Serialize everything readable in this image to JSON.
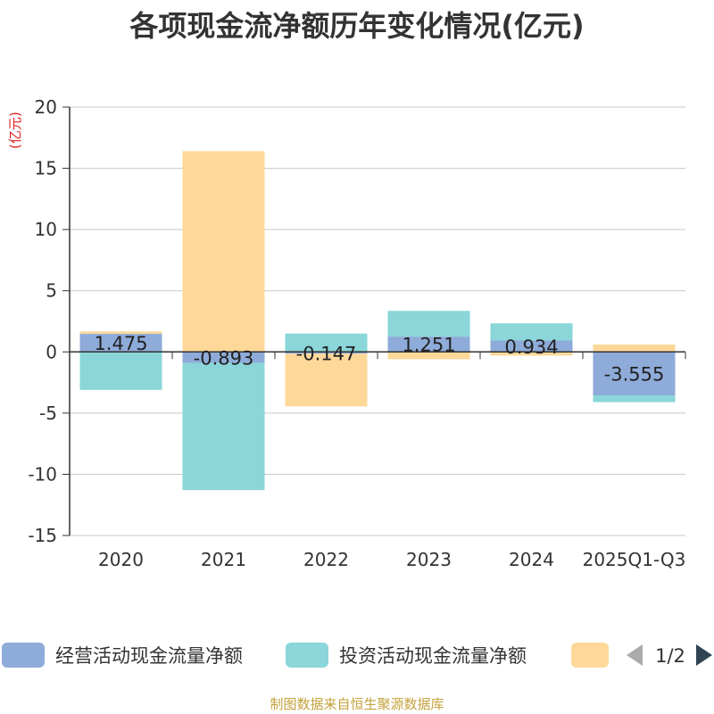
{
  "chart_data": {
    "type": "bar",
    "stacked": true,
    "title": "各项现金流净额历年变化情况(亿元)",
    "ylabel": "(亿元)",
    "xlabel": "",
    "ylim": [
      -15,
      20
    ],
    "yticks": [
      20,
      15,
      10,
      5,
      0,
      -5,
      -10,
      -15
    ],
    "grid": true,
    "categories": [
      "2020",
      "2021",
      "2022",
      "2023",
      "2024",
      "2025Q1-Q3"
    ],
    "series": [
      {
        "name": "经营活动现金流量净额",
        "color": "#8eabd9",
        "values": [
          1.475,
          -0.893,
          -0.147,
          1.251,
          0.934,
          -3.555
        ],
        "labels": [
          "1.475",
          "-0.893",
          "-0.147",
          "1.251",
          "0.934",
          "-3.555"
        ]
      },
      {
        "name": "投资活动现金流量净额",
        "color": "#8ad6d9",
        "values": [
          -3.1,
          -10.4,
          1.5,
          2.1,
          1.4,
          -0.55
        ]
      },
      {
        "name": "",
        "color": "#fdd899",
        "values": [
          0.2,
          16.4,
          -4.3,
          -0.6,
          -0.3,
          0.6
        ]
      }
    ],
    "legend": {
      "position": "bottom",
      "page_label": "1/2"
    }
  },
  "source": "制图数据来自恒生聚源数据库"
}
